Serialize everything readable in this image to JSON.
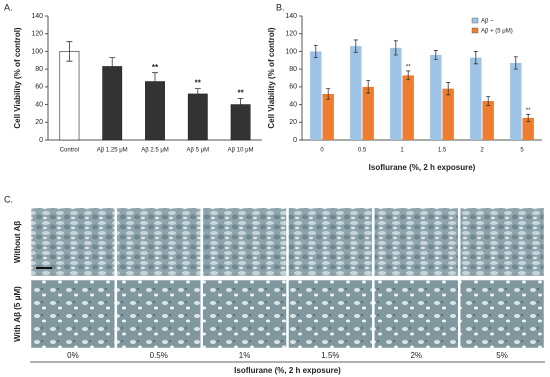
{
  "chart_data": [
    {
      "type": "bar",
      "panel_label": "A.",
      "y_label": "Cell Viability (% of control)",
      "categories": [
        "Control",
        "Aβ 1.25 μM",
        "Aβ 2.5 μM",
        "Aβ 5 μM",
        "Aβ 10 μM"
      ],
      "values": [
        100,
        83,
        66,
        52,
        40
      ],
      "errors": [
        11,
        10,
        10,
        6,
        7
      ],
      "significance": [
        null,
        null,
        "**",
        "**",
        "**"
      ],
      "colors": [
        "#ffffff",
        "#333333",
        "#333333",
        "#333333",
        "#333333"
      ],
      "ylim": [
        0,
        140
      ],
      "yticks": [
        0,
        20,
        40,
        60,
        80,
        100,
        120,
        140
      ],
      "grid": false
    },
    {
      "type": "bar",
      "panel_label": "B.",
      "y_label": "Cell Viability (% of control)",
      "x_label": "Isoflurane (%, 2 h exposure)",
      "categories": [
        "0",
        "0.5",
        "1",
        "1.5",
        "2",
        "5"
      ],
      "series": [
        {
          "name": "Aβ −",
          "color": "#9dc3e6",
          "values": [
            100,
            106,
            104,
            96,
            93,
            87
          ],
          "errors": [
            7,
            7,
            8,
            5,
            7,
            7
          ],
          "significance": [
            null,
            null,
            null,
            null,
            null,
            null
          ]
        },
        {
          "name": "Aβ + (5 μM)",
          "color": "#ed7d31",
          "values": [
            52,
            60,
            73,
            58,
            44,
            25
          ],
          "errors": [
            6,
            7,
            5,
            7,
            5,
            4
          ],
          "significance": [
            null,
            null,
            "**",
            null,
            null,
            "**"
          ]
        }
      ],
      "ylim": [
        0,
        140
      ],
      "yticks": [
        0,
        20,
        40,
        60,
        80,
        100,
        120,
        140
      ],
      "grid": false,
      "legend": "upper right"
    }
  ],
  "image_grid": {
    "panel_label": "C.",
    "rows": [
      "Without Aβ",
      "With Aβ (5 μM)"
    ],
    "columns": [
      "0%",
      "0.5%",
      "1%",
      "1.5%",
      "2%",
      "5%"
    ],
    "x_label": "Isoflurane (%, 2 h exposure)"
  }
}
